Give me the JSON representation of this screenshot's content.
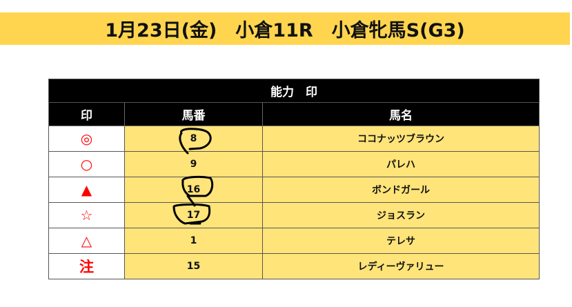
{
  "title": "1月23日(金)　小倉11R　小倉牝馬S(G3)",
  "table": {
    "caption": "能力　印",
    "columns": [
      "印",
      "馬番",
      "馬名"
    ],
    "rows": [
      {
        "mark": "◎",
        "number": "8",
        "name": "ココナッツブラウン",
        "circled": true
      },
      {
        "mark": "○",
        "number": "9",
        "name": "パレハ",
        "circled": false
      },
      {
        "mark": "▲",
        "number": "16",
        "name": "ボンドガール",
        "circled": true
      },
      {
        "mark": "☆",
        "number": "17",
        "name": "ジョスラン",
        "circled": true
      },
      {
        "mark": "△",
        "number": "1",
        "name": "テレサ",
        "circled": false
      },
      {
        "mark": "注",
        "number": "15",
        "name": "レディーヴァリュー",
        "circled": false
      }
    ]
  },
  "colors": {
    "title_bg": "#FFD54F",
    "cell_bg": "#FFE47A",
    "mark": "#FF0000",
    "header_bg": "#000000"
  }
}
